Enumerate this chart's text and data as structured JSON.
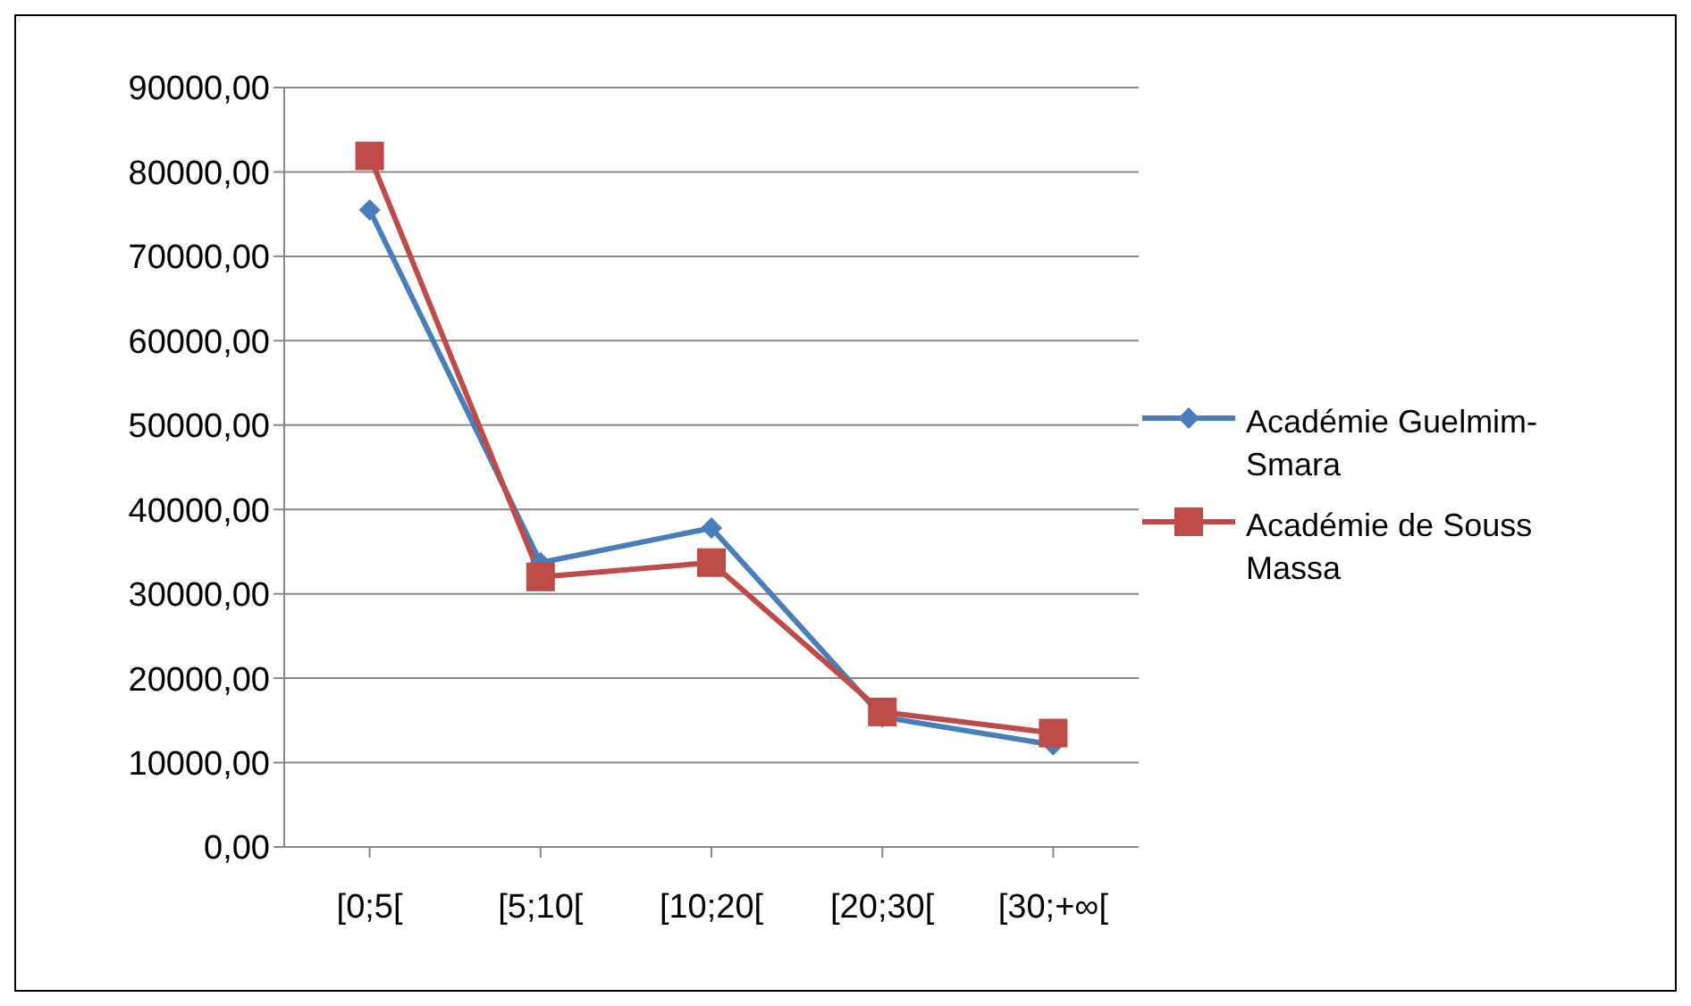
{
  "chart_data": {
    "type": "line",
    "categories": [
      "[0;5[",
      "[5;10[",
      "[10;20[",
      "[20;30[",
      "[30;+∞["
    ],
    "series": [
      {
        "name": "Académie Guelmim-Smara",
        "color": "#4a7ebb",
        "marker": "diamond",
        "values": [
          75500,
          33700,
          37800,
          15400,
          12100
        ]
      },
      {
        "name": "Académie de Souss Massa",
        "color": "#be4b48",
        "marker": "square",
        "values": [
          81900,
          32000,
          33700,
          16000,
          13500
        ]
      }
    ],
    "ylim": [
      0,
      90000
    ],
    "yticks": [
      {
        "value": 0,
        "label": "0,00"
      },
      {
        "value": 10000,
        "label": "10000,00"
      },
      {
        "value": 20000,
        "label": "20000,00"
      },
      {
        "value": 30000,
        "label": "30000,00"
      },
      {
        "value": 40000,
        "label": "40000,00"
      },
      {
        "value": 50000,
        "label": "50000,00"
      },
      {
        "value": 60000,
        "label": "60000,00"
      },
      {
        "value": 70000,
        "label": "70000,00"
      },
      {
        "value": 80000,
        "label": "80000,00"
      },
      {
        "value": 90000,
        "label": "90000,00"
      }
    ],
    "grid": "y",
    "legend": "right",
    "line_style": "solid"
  }
}
